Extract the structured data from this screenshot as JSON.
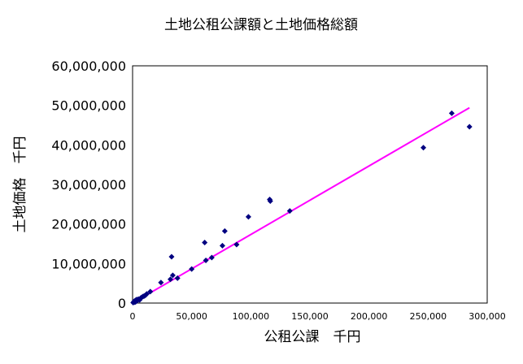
{
  "chart_data": {
    "type": "scatter",
    "title": "土地公租公課額と土地価格総額",
    "xlabel": "公租公課　千円",
    "ylabel": "土地価格　千円",
    "xlim": [
      0,
      300000
    ],
    "ylim": [
      0,
      60000000
    ],
    "xticks": [
      0,
      50000,
      100000,
      150000,
      200000,
      250000,
      300000
    ],
    "xtick_labels": [
      "0",
      "50,000",
      "100,000",
      "150,000",
      "200,000",
      "250,000",
      "300,000"
    ],
    "yticks": [
      0,
      10000000,
      20000000,
      30000000,
      40000000,
      50000000,
      60000000
    ],
    "ytick_labels": [
      "0",
      "10,000,000",
      "20,000,000",
      "30,000,000",
      "40,000,000",
      "50,000,000",
      "60,000,000"
    ],
    "grid": false,
    "legend": false,
    "points": [
      [
        500,
        100000
      ],
      [
        1000,
        300000
      ],
      [
        1500,
        500000
      ],
      [
        2000,
        200000
      ],
      [
        2500,
        700000
      ],
      [
        3000,
        400000
      ],
      [
        3500,
        900000
      ],
      [
        4000,
        600000
      ],
      [
        5000,
        1000000
      ],
      [
        6000,
        800000
      ],
      [
        7000,
        1300000
      ],
      [
        8000,
        1500000
      ],
      [
        9000,
        1700000
      ],
      [
        10000,
        1800000
      ],
      [
        11000,
        2000000
      ],
      [
        12000,
        2300000
      ],
      [
        15000,
        2900000
      ],
      [
        24000,
        5200000
      ],
      [
        32000,
        6000000
      ],
      [
        33000,
        11700000
      ],
      [
        34000,
        7000000
      ],
      [
        38000,
        6300000
      ],
      [
        50000,
        8600000
      ],
      [
        61000,
        15300000
      ],
      [
        62000,
        10800000
      ],
      [
        67000,
        11500000
      ],
      [
        76000,
        14500000
      ],
      [
        78000,
        18200000
      ],
      [
        88000,
        14800000
      ],
      [
        98000,
        21800000
      ],
      [
        116000,
        26200000
      ],
      [
        116500,
        25800000
      ],
      [
        133000,
        23300000
      ],
      [
        246000,
        39300000
      ],
      [
        270000,
        48000000
      ],
      [
        285000,
        44600000
      ]
    ],
    "trendline": {
      "type": "linear",
      "from": [
        0,
        0
      ],
      "to": [
        285000,
        49400000
      ]
    }
  },
  "colors": {
    "marker": "#000080",
    "trendline": "#ff00ff",
    "plot_border": "#000000",
    "background": "#ffffff"
  }
}
